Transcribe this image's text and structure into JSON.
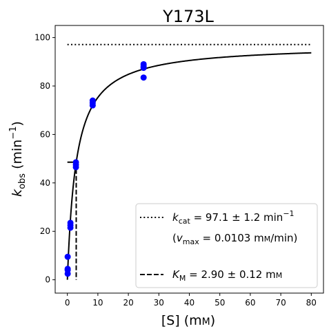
{
  "chart_data": {
    "type": "scatter",
    "title": "Y173L",
    "xlabel_main": "[S] (m",
    "xlabel_unit_small": "M",
    "xlabel_close": ")",
    "ylabel_k": "k",
    "ylabel_sub": "obs",
    "ylabel_unit": " (min",
    "ylabel_sup": "−1",
    "ylabel_close": ")",
    "xlim": [
      -4,
      84
    ],
    "ylim": [
      -5.5,
      105
    ],
    "x_ticks": [
      0,
      10,
      20,
      30,
      40,
      50,
      60,
      70,
      80
    ],
    "y_ticks": [
      0,
      20,
      40,
      60,
      80,
      100
    ],
    "points": {
      "x": [
        0.1,
        0.1,
        0.1,
        0.1,
        1.0,
        1.0,
        1.0,
        2.8,
        2.8,
        2.8,
        8.3,
        8.3,
        8.3,
        25,
        25,
        25,
        25
      ],
      "y": [
        2.5,
        4.0,
        4.5,
        9.5,
        21.5,
        22.5,
        23.5,
        46.5,
        47.5,
        48.5,
        72,
        73,
        74,
        83.5,
        87.5,
        88.2,
        89
      ],
      "color": "#0000ff"
    },
    "fit_curve": {
      "kcat": 97.1,
      "km": 2.9,
      "x_range": [
        0,
        80
      ],
      "color": "#000000"
    },
    "kcat_line": {
      "y": 97.1,
      "x_range": [
        0,
        80
      ],
      "style": "dotted"
    },
    "km_marker": {
      "x": 2.9,
      "y_half": 48.55,
      "h_x_range": [
        0,
        2.9
      ],
      "style": "dashed"
    },
    "legend": {
      "position": "bottom-right",
      "kcat_k": "k",
      "kcat_sub": "cat",
      "kcat_text": " = 97.1 ± 1.2 min",
      "kcat_sup": "−1",
      "vmax_open": "(",
      "vmax_v": "v",
      "vmax_sub": "max",
      "vmax_text": " = 0.0103 m",
      "vmax_unit_small": "M",
      "vmax_close": "/min)",
      "km_k": "K",
      "km_sub": "M",
      "km_text": " = 2.90 ± 0.12 m",
      "km_unit_small": "M"
    }
  }
}
